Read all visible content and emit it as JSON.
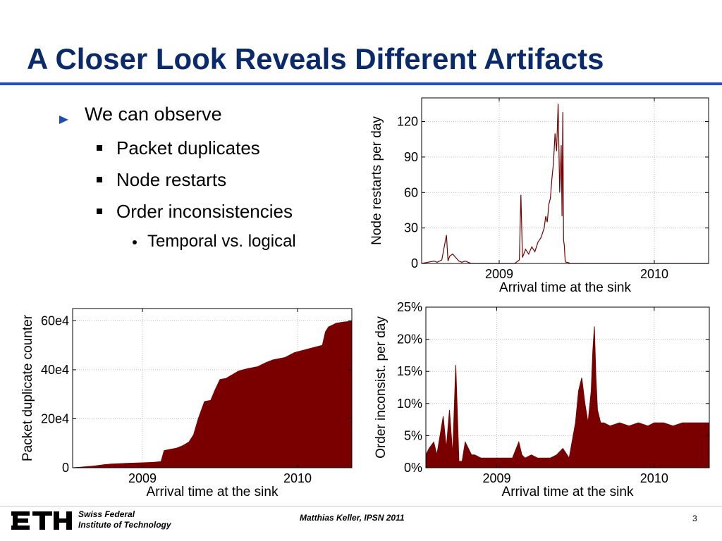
{
  "slide": {
    "title": "A Closer Look Reveals Different Artifacts",
    "bullets": {
      "main": "We can observe",
      "items": [
        "Packet duplicates",
        "Node restarts",
        "Order inconsistencies"
      ],
      "sub": "Temporal vs. logical"
    }
  },
  "footer": {
    "institution_line1": "Swiss Federal",
    "institution_line2": "Institute of Technology",
    "logo_text": "ETH",
    "author": "Matthias Keller, IPSN 2011",
    "page": "3"
  },
  "colors": {
    "title": "#0a2a6b",
    "accent": "#1b4fd6",
    "series": "#7a0000"
  },
  "chart_data": [
    {
      "id": "restarts",
      "type": "line",
      "xlabel": "Arrival time at the sink",
      "ylabel": "Node restarts per day",
      "x_tick_labels": [
        "2009",
        "2010"
      ],
      "x_tick_values": [
        2009.0,
        2010.0
      ],
      "xlim": [
        2008.5,
        2010.35
      ],
      "ylim": [
        0,
        140
      ],
      "y_ticks": [
        0,
        30,
        60,
        90,
        120
      ],
      "y_tick_labels": [
        "0",
        "30",
        "60",
        "90",
        "120"
      ],
      "grid": true,
      "series": [
        {
          "x": [
            2008.5,
            2008.54,
            2008.58,
            2008.6,
            2008.63,
            2008.66,
            2008.67,
            2008.68,
            2008.7,
            2008.72,
            2008.74,
            2008.76,
            2008.78,
            2008.8,
            2008.82,
            2008.86,
            2008.9,
            2008.94,
            2008.98,
            2009.02,
            2009.06,
            2009.1,
            2009.13,
            2009.14,
            2009.15,
            2009.17,
            2009.19,
            2009.21,
            2009.23,
            2009.25,
            2009.27,
            2009.29,
            2009.3,
            2009.31,
            2009.32,
            2009.33,
            2009.34,
            2009.35,
            2009.36,
            2009.37,
            2009.38,
            2009.39,
            2009.4,
            2009.405,
            2009.41,
            2009.415,
            2009.42,
            2009.425,
            2009.43,
            2009.44,
            2009.46,
            2009.5,
            2009.6,
            2009.8,
            2010.0,
            2010.2,
            2010.35
          ],
          "y": [
            0,
            1,
            2,
            1,
            3,
            24,
            2,
            6,
            8,
            5,
            2,
            1,
            2,
            1,
            0,
            0,
            0,
            0,
            0,
            0,
            0,
            0,
            3,
            58,
            5,
            12,
            8,
            14,
            10,
            18,
            22,
            30,
            40,
            35,
            50,
            55,
            72,
            85,
            110,
            95,
            135,
            60,
            100,
            40,
            128,
            20,
            15,
            3,
            1,
            1,
            0,
            0,
            0,
            0,
            0,
            0,
            0
          ]
        }
      ]
    },
    {
      "id": "duplicates",
      "type": "area",
      "xlabel": "Arrival time at the sink",
      "ylabel": "Packet duplicate counter",
      "x_tick_labels": [
        "2009",
        "2010"
      ],
      "x_tick_values": [
        2009.0,
        2010.0
      ],
      "xlim": [
        2008.55,
        2010.35
      ],
      "ylim": [
        0,
        650000
      ],
      "y_ticks": [
        0,
        200000,
        400000,
        600000
      ],
      "y_tick_labels": [
        "0",
        "20e4",
        "40e4",
        "60e4"
      ],
      "grid": true,
      "series": [
        {
          "x": [
            2008.55,
            2008.6,
            2008.65,
            2008.7,
            2008.75,
            2008.8,
            2008.9,
            2009.0,
            2009.07,
            2009.1,
            2009.12,
            2009.14,
            2009.18,
            2009.22,
            2009.26,
            2009.3,
            2009.33,
            2009.36,
            2009.4,
            2009.44,
            2009.47,
            2009.5,
            2009.54,
            2009.58,
            2009.62,
            2009.68,
            2009.74,
            2009.8,
            2009.84,
            2009.88,
            2009.92,
            2009.98,
            2010.04,
            2010.1,
            2010.16,
            2010.18,
            2010.2,
            2010.25,
            2010.3,
            2010.35
          ],
          "y": [
            0,
            2000,
            5000,
            8000,
            12000,
            15000,
            18000,
            20000,
            22000,
            24000,
            25000,
            70000,
            75000,
            80000,
            90000,
            105000,
            135000,
            200000,
            270000,
            275000,
            320000,
            360000,
            365000,
            380000,
            395000,
            405000,
            412000,
            430000,
            440000,
            445000,
            450000,
            470000,
            480000,
            490000,
            500000,
            555000,
            575000,
            590000,
            595000,
            598000
          ]
        }
      ]
    },
    {
      "id": "order",
      "type": "area",
      "xlabel": "Arrival time at the sink",
      "ylabel": "Order inconsist. per day",
      "x_tick_labels": [
        "2009",
        "2010"
      ],
      "x_tick_values": [
        2009.0,
        2010.0
      ],
      "xlim": [
        2008.55,
        2010.35
      ],
      "ylim": [
        0,
        25
      ],
      "y_ticks": [
        0,
        5,
        10,
        15,
        20,
        25
      ],
      "y_tick_labels": [
        "0%",
        "5%",
        "10%",
        "15%",
        "20%",
        "25%"
      ],
      "grid": true,
      "series": [
        {
          "x": [
            2008.55,
            2008.57,
            2008.6,
            2008.62,
            2008.64,
            2008.66,
            2008.68,
            2008.7,
            2008.72,
            2008.74,
            2008.76,
            2008.78,
            2008.8,
            2008.82,
            2008.84,
            2008.86,
            2008.9,
            2008.95,
            2009.0,
            2009.05,
            2009.1,
            2009.14,
            2009.16,
            2009.18,
            2009.22,
            2009.26,
            2009.3,
            2009.34,
            2009.38,
            2009.42,
            2009.46,
            2009.5,
            2009.52,
            2009.54,
            2009.56,
            2009.58,
            2009.6,
            2009.61,
            2009.62,
            2009.63,
            2009.64,
            2009.66,
            2009.68,
            2009.72,
            2009.78,
            2009.84,
            2009.9,
            2009.96,
            2010.0,
            2010.06,
            2010.12,
            2010.18,
            2010.24,
            2010.3,
            2010.35
          ],
          "y": [
            2,
            3,
            4,
            2,
            5,
            8,
            3,
            9,
            2,
            16,
            1,
            1,
            4,
            3,
            2,
            2,
            1.5,
            1.5,
            1.5,
            1.5,
            1.5,
            4,
            2,
            1.5,
            2,
            1.5,
            1.5,
            1.5,
            2,
            3,
            1.5,
            7,
            12,
            14,
            10,
            7,
            12,
            18,
            22,
            14,
            9,
            7,
            7,
            6.5,
            7,
            6.5,
            7,
            6.5,
            7,
            7,
            6.5,
            7,
            7,
            7,
            7
          ]
        }
      ]
    }
  ]
}
